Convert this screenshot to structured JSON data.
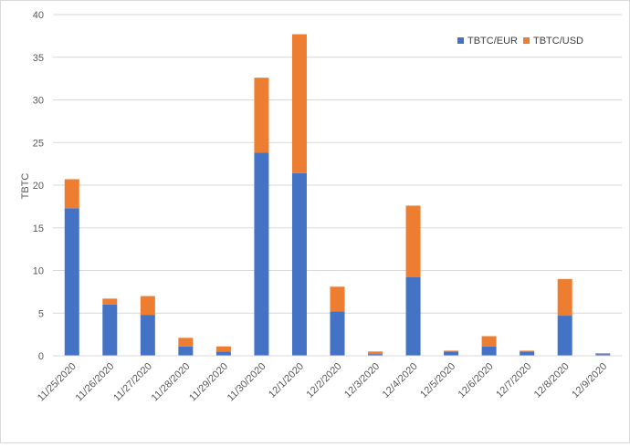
{
  "chart_data": {
    "type": "bar",
    "stacked": true,
    "title": "",
    "xlabel": "",
    "ylabel": "TBTC",
    "ylim": [
      0,
      40
    ],
    "yticks": [
      0,
      5,
      10,
      15,
      20,
      25,
      30,
      35,
      40
    ],
    "grid": true,
    "legend_position": "top-right",
    "categories": [
      "11/25/2020",
      "11/26/2020",
      "11/27/2020",
      "11/28/2020",
      "11/29/2020",
      "11/30/2020",
      "12/1/2020",
      "12/2/2020",
      "12/3/2020",
      "12/4/2020",
      "12/5/2020",
      "12/6/2020",
      "12/7/2020",
      "12/8/2020",
      "12/9/2020"
    ],
    "series": [
      {
        "name": "TBTC/EUR",
        "color": "#4472C4",
        "values": [
          17.3,
          6.0,
          4.8,
          1.1,
          0.5,
          23.8,
          21.4,
          5.2,
          0.2,
          9.2,
          0.5,
          1.1,
          0.5,
          4.7,
          0.2
        ]
      },
      {
        "name": "TBTC/USD",
        "color": "#ED7D31",
        "values": [
          3.4,
          0.7,
          2.2,
          1.0,
          0.6,
          8.8,
          16.3,
          2.9,
          0.3,
          8.4,
          0.1,
          1.2,
          0.1,
          4.3,
          0.1
        ]
      }
    ]
  }
}
